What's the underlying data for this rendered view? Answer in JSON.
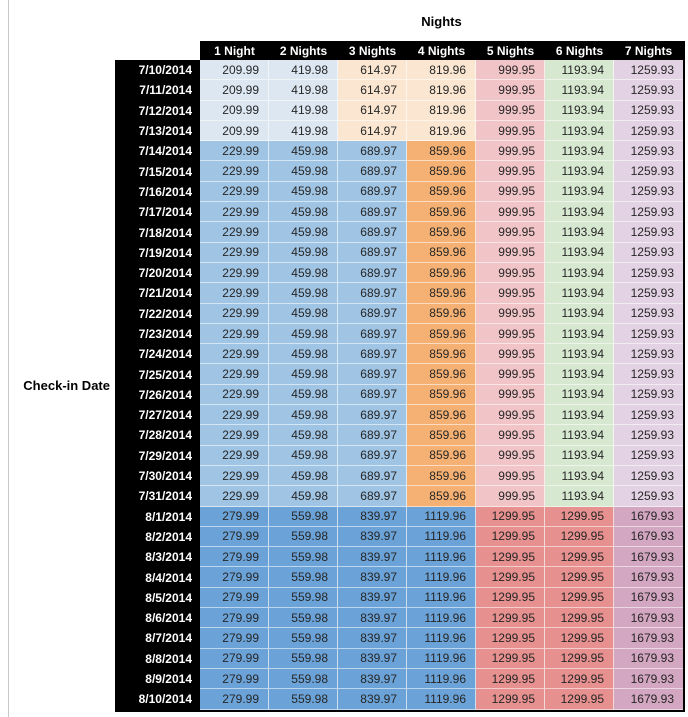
{
  "chart_data": {
    "type": "table",
    "title": "Nights",
    "row_axis_label": "Check-in Date",
    "columns": [
      "1 Night",
      "2 Nights",
      "3 Nights",
      "4 Nights",
      "5 Nights",
      "6 Nights",
      "7 Nights"
    ],
    "rows": [
      {
        "date": "7/10/2014",
        "tier": "early",
        "values": [
          209.99,
          419.98,
          614.97,
          819.96,
          999.95,
          1193.94,
          1259.93
        ]
      },
      {
        "date": "7/11/2014",
        "tier": "early",
        "values": [
          209.99,
          419.98,
          614.97,
          819.96,
          999.95,
          1193.94,
          1259.93
        ]
      },
      {
        "date": "7/12/2014",
        "tier": "early",
        "values": [
          209.99,
          419.98,
          614.97,
          819.96,
          999.95,
          1193.94,
          1259.93
        ]
      },
      {
        "date": "7/13/2014",
        "tier": "early",
        "values": [
          209.99,
          419.98,
          614.97,
          819.96,
          999.95,
          1193.94,
          1259.93
        ]
      },
      {
        "date": "7/14/2014",
        "tier": "mid",
        "values": [
          229.99,
          459.98,
          689.97,
          859.96,
          999.95,
          1193.94,
          1259.93
        ]
      },
      {
        "date": "7/15/2014",
        "tier": "mid",
        "values": [
          229.99,
          459.98,
          689.97,
          859.96,
          999.95,
          1193.94,
          1259.93
        ]
      },
      {
        "date": "7/16/2014",
        "tier": "mid",
        "values": [
          229.99,
          459.98,
          689.97,
          859.96,
          999.95,
          1193.94,
          1259.93
        ]
      },
      {
        "date": "7/17/2014",
        "tier": "mid",
        "values": [
          229.99,
          459.98,
          689.97,
          859.96,
          999.95,
          1193.94,
          1259.93
        ]
      },
      {
        "date": "7/18/2014",
        "tier": "mid",
        "values": [
          229.99,
          459.98,
          689.97,
          859.96,
          999.95,
          1193.94,
          1259.93
        ]
      },
      {
        "date": "7/19/2014",
        "tier": "mid",
        "values": [
          229.99,
          459.98,
          689.97,
          859.96,
          999.95,
          1193.94,
          1259.93
        ]
      },
      {
        "date": "7/20/2014",
        "tier": "mid",
        "values": [
          229.99,
          459.98,
          689.97,
          859.96,
          999.95,
          1193.94,
          1259.93
        ]
      },
      {
        "date": "7/21/2014",
        "tier": "mid",
        "values": [
          229.99,
          459.98,
          689.97,
          859.96,
          999.95,
          1193.94,
          1259.93
        ]
      },
      {
        "date": "7/22/2014",
        "tier": "mid",
        "values": [
          229.99,
          459.98,
          689.97,
          859.96,
          999.95,
          1193.94,
          1259.93
        ]
      },
      {
        "date": "7/23/2014",
        "tier": "mid",
        "values": [
          229.99,
          459.98,
          689.97,
          859.96,
          999.95,
          1193.94,
          1259.93
        ]
      },
      {
        "date": "7/24/2014",
        "tier": "mid",
        "values": [
          229.99,
          459.98,
          689.97,
          859.96,
          999.95,
          1193.94,
          1259.93
        ]
      },
      {
        "date": "7/25/2014",
        "tier": "mid",
        "values": [
          229.99,
          459.98,
          689.97,
          859.96,
          999.95,
          1193.94,
          1259.93
        ]
      },
      {
        "date": "7/26/2014",
        "tier": "mid",
        "values": [
          229.99,
          459.98,
          689.97,
          859.96,
          999.95,
          1193.94,
          1259.93
        ]
      },
      {
        "date": "7/27/2014",
        "tier": "mid",
        "values": [
          229.99,
          459.98,
          689.97,
          859.96,
          999.95,
          1193.94,
          1259.93
        ]
      },
      {
        "date": "7/28/2014",
        "tier": "mid",
        "values": [
          229.99,
          459.98,
          689.97,
          859.96,
          999.95,
          1193.94,
          1259.93
        ]
      },
      {
        "date": "7/29/2014",
        "tier": "mid",
        "values": [
          229.99,
          459.98,
          689.97,
          859.96,
          999.95,
          1193.94,
          1259.93
        ]
      },
      {
        "date": "7/30/2014",
        "tier": "mid",
        "values": [
          229.99,
          459.98,
          689.97,
          859.96,
          999.95,
          1193.94,
          1259.93
        ]
      },
      {
        "date": "7/31/2014",
        "tier": "mid",
        "values": [
          229.99,
          459.98,
          689.97,
          859.96,
          999.95,
          1193.94,
          1259.93
        ]
      },
      {
        "date": "8/1/2014",
        "tier": "peak",
        "values": [
          279.99,
          559.98,
          839.97,
          1119.96,
          1299.95,
          1299.95,
          1679.93
        ]
      },
      {
        "date": "8/2/2014",
        "tier": "peak",
        "values": [
          279.99,
          559.98,
          839.97,
          1119.96,
          1299.95,
          1299.95,
          1679.93
        ]
      },
      {
        "date": "8/3/2014",
        "tier": "peak",
        "values": [
          279.99,
          559.98,
          839.97,
          1119.96,
          1299.95,
          1299.95,
          1679.93
        ]
      },
      {
        "date": "8/4/2014",
        "tier": "peak",
        "values": [
          279.99,
          559.98,
          839.97,
          1119.96,
          1299.95,
          1299.95,
          1679.93
        ]
      },
      {
        "date": "8/5/2014",
        "tier": "peak",
        "values": [
          279.99,
          559.98,
          839.97,
          1119.96,
          1299.95,
          1299.95,
          1679.93
        ]
      },
      {
        "date": "8/6/2014",
        "tier": "peak",
        "values": [
          279.99,
          559.98,
          839.97,
          1119.96,
          1299.95,
          1299.95,
          1679.93
        ]
      },
      {
        "date": "8/7/2014",
        "tier": "peak",
        "values": [
          279.99,
          559.98,
          839.97,
          1119.96,
          1299.95,
          1299.95,
          1679.93
        ]
      },
      {
        "date": "8/8/2014",
        "tier": "peak",
        "values": [
          279.99,
          559.98,
          839.97,
          1119.96,
          1299.95,
          1299.95,
          1679.93
        ]
      },
      {
        "date": "8/9/2014",
        "tier": "peak",
        "values": [
          279.99,
          559.98,
          839.97,
          1119.96,
          1299.95,
          1299.95,
          1679.93
        ]
      },
      {
        "date": "8/10/2014",
        "tier": "peak",
        "values": [
          279.99,
          559.98,
          839.97,
          1119.96,
          1299.95,
          1299.95,
          1679.93
        ]
      }
    ],
    "layout_hints": {
      "header_background": "#000000",
      "header_text_color": "#ffffff",
      "value_text_color": "#262626",
      "tier_cell_colors": {
        "early": [
          "#DCE7F2",
          "#DCE7F2",
          "#FBE7D1",
          "#FBE7D1",
          "#F1C5C7",
          "#D7E8D1",
          "#E3D2E3"
        ],
        "mid": [
          "#A0C4E4",
          "#A0C4E4",
          "#A0C4E4",
          "#F5B173",
          "#F1C5C7",
          "#D7E8D1",
          "#E3D2E3"
        ],
        "peak": [
          "#6BA3D8",
          "#6BA3D8",
          "#6BA3D8",
          "#6BA3D8",
          "#E6918F",
          "#E6918F",
          "#D3A6C1"
        ]
      }
    }
  }
}
